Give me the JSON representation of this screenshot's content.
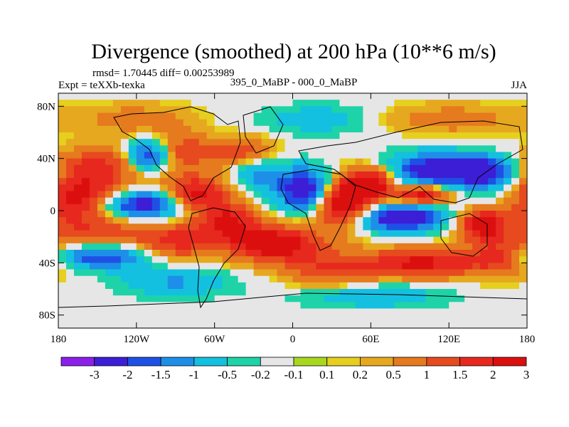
{
  "chart_data": {
    "type": "heatmap",
    "title": "Divergence (smoothed) at 200 hPa (10**6 m/s)",
    "stats_text": "rmsd= 1.70445 diff= 0.00253989",
    "left_label": "Expt = teXXb-texka",
    "center_label": "395_0_MaBP - 000_0_MaBP",
    "right_label": "JJA",
    "xlim": [
      -180,
      180
    ],
    "ylim": [
      -90,
      90
    ],
    "x_ticks": [
      {
        "value": -180,
        "label": "180"
      },
      {
        "value": -120,
        "label": "120W"
      },
      {
        "value": -60,
        "label": "60W"
      },
      {
        "value": 0,
        "label": "0"
      },
      {
        "value": 60,
        "label": "60E"
      },
      {
        "value": 120,
        "label": "120E"
      },
      {
        "value": 180,
        "label": "180"
      }
    ],
    "y_ticks": [
      {
        "value": 80,
        "label": "80N"
      },
      {
        "value": 40,
        "label": "40N"
      },
      {
        "value": 0,
        "label": "0"
      },
      {
        "value": -40,
        "label": "40S"
      },
      {
        "value": -80,
        "label": "80S"
      }
    ],
    "levels": [
      -3,
      -2,
      -1.5,
      -1,
      -0.5,
      -0.2,
      -0.1,
      0.1,
      0.2,
      0.5,
      1,
      1.5,
      2,
      3
    ],
    "level_labels": [
      "-3",
      "-2",
      "-1.5",
      "-1",
      "-0.5",
      "-0.2",
      "-0.1",
      "0.1",
      "0.2",
      "0.5",
      "1",
      "1.5",
      "2",
      "3"
    ],
    "colors": [
      "#8c1fe8",
      "#3c1ed6",
      "#1e50e6",
      "#1e8fe8",
      "#14c0e0",
      "#1ed3a8",
      "#e6e6e6",
      "#a8d81e",
      "#e6cf1e",
      "#e6a81e",
      "#e67a1e",
      "#e64a1e",
      "#e6281e",
      "#dc0f0f"
    ],
    "features": [
      {
        "lon": -165,
        "lat": 8,
        "slon": 28,
        "slat": 12,
        "amp": 3.4
      },
      {
        "lon": -120,
        "lat": 5,
        "slon": 30,
        "slat": 8,
        "amp": -3.2
      },
      {
        "lon": -75,
        "lat": 12,
        "slon": 18,
        "slat": 10,
        "amp": 2.6
      },
      {
        "lon": -150,
        "lat": 35,
        "slon": 22,
        "slat": 10,
        "amp": 1.6
      },
      {
        "lon": -110,
        "lat": 42,
        "slon": 12,
        "slat": 8,
        "amp": -2.3
      },
      {
        "lon": -85,
        "lat": 45,
        "slon": 15,
        "slat": 10,
        "amp": 1.4
      },
      {
        "lon": -40,
        "lat": 45,
        "slon": 18,
        "slat": 8,
        "amp": 1.5
      },
      {
        "lon": -25,
        "lat": 28,
        "slon": 14,
        "slat": 10,
        "amp": -1.3
      },
      {
        "lon": -150,
        "lat": -18,
        "slon": 35,
        "slat": 8,
        "amp": 1.2
      },
      {
        "lon": -150,
        "lat": -35,
        "slon": 32,
        "slat": 7,
        "amp": -1.9
      },
      {
        "lon": -90,
        "lat": -25,
        "slon": 20,
        "slat": 10,
        "amp": 1.6
      },
      {
        "lon": -50,
        "lat": -8,
        "slon": 16,
        "slat": 10,
        "amp": 2.0
      },
      {
        "lon": -15,
        "lat": -25,
        "slon": 25,
        "slat": 10,
        "amp": 2.6
      },
      {
        "lon": -90,
        "lat": -55,
        "slon": 30,
        "slat": 8,
        "amp": -1.1
      },
      {
        "lon": 10,
        "lat": 15,
        "slon": 14,
        "slat": 12,
        "amp": -3.1
      },
      {
        "lon": 40,
        "lat": 5,
        "slon": 18,
        "slat": 12,
        "amp": 3.3
      },
      {
        "lon": 60,
        "lat": 22,
        "slon": 14,
        "slat": 8,
        "amp": 2.4
      },
      {
        "lon": 80,
        "lat": -5,
        "slon": 25,
        "slat": 8,
        "amp": -3.1
      },
      {
        "lon": 110,
        "lat": 30,
        "slon": 25,
        "slat": 10,
        "amp": -2.7
      },
      {
        "lon": 150,
        "lat": 30,
        "slon": 15,
        "slat": 8,
        "amp": -2.2
      },
      {
        "lon": 100,
        "lat": 12,
        "slon": 15,
        "slat": 6,
        "amp": 2.8
      },
      {
        "lon": 145,
        "lat": -10,
        "slon": 12,
        "slat": 8,
        "amp": 2.5
      },
      {
        "lon": 165,
        "lat": 10,
        "slon": 20,
        "slat": 10,
        "amp": -1.3
      },
      {
        "lon": 100,
        "lat": -40,
        "slon": 30,
        "slat": 8,
        "amp": 2.2
      },
      {
        "lon": 160,
        "lat": -35,
        "slon": 18,
        "slat": 10,
        "amp": 1.8
      },
      {
        "lon": 30,
        "lat": -45,
        "slon": 25,
        "slat": 10,
        "amp": 1.4
      },
      {
        "lon": 60,
        "lat": -65,
        "slon": 40,
        "slat": 7,
        "amp": -1.0
      },
      {
        "lon": -120,
        "lat": 70,
        "slon": 30,
        "slat": 8,
        "amp": 0.8
      },
      {
        "lon": 20,
        "lat": 70,
        "slon": 30,
        "slat": 8,
        "amp": -0.9
      },
      {
        "lon": 120,
        "lat": 70,
        "slon": 40,
        "slat": 8,
        "amp": 0.8
      }
    ]
  }
}
